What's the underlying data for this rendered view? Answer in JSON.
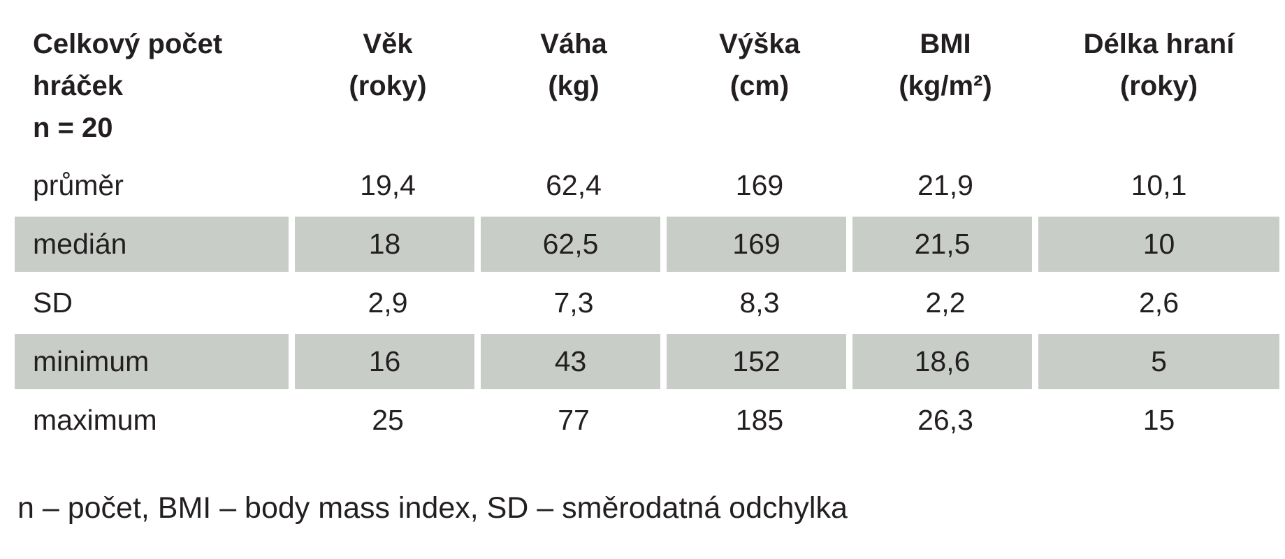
{
  "table": {
    "headers": [
      {
        "lines": [
          "Celkový počet",
          "hráček",
          "n = 20"
        ]
      },
      {
        "lines": [
          "Věk",
          "(roky)"
        ]
      },
      {
        "lines": [
          "Váha",
          "(kg)"
        ]
      },
      {
        "lines": [
          "Výška",
          "(cm)"
        ]
      },
      {
        "lines": [
          "BMI",
          "(kg/m²)"
        ]
      },
      {
        "lines": [
          "Délka hraní",
          "(roky)"
        ]
      }
    ],
    "rows": [
      {
        "label": "průměr",
        "values": [
          "19,4",
          "62,4",
          "169",
          "21,9",
          "10,1"
        ]
      },
      {
        "label": "medián",
        "values": [
          "18",
          "62,5",
          "169",
          "21,5",
          "10"
        ]
      },
      {
        "label": "SD",
        "values": [
          "2,9",
          "7,3",
          "8,3",
          "2,2",
          "2,6"
        ]
      },
      {
        "label": "minimum",
        "values": [
          "16",
          "43",
          "152",
          "18,6",
          "5"
        ]
      },
      {
        "label": "maximum",
        "values": [
          "25",
          "77",
          "185",
          "26,3",
          "15"
        ]
      }
    ],
    "shade_color": "#c8cdc8"
  },
  "footnote": "n – počet, BMI – body mass index, SD – směrodatná odchylka"
}
